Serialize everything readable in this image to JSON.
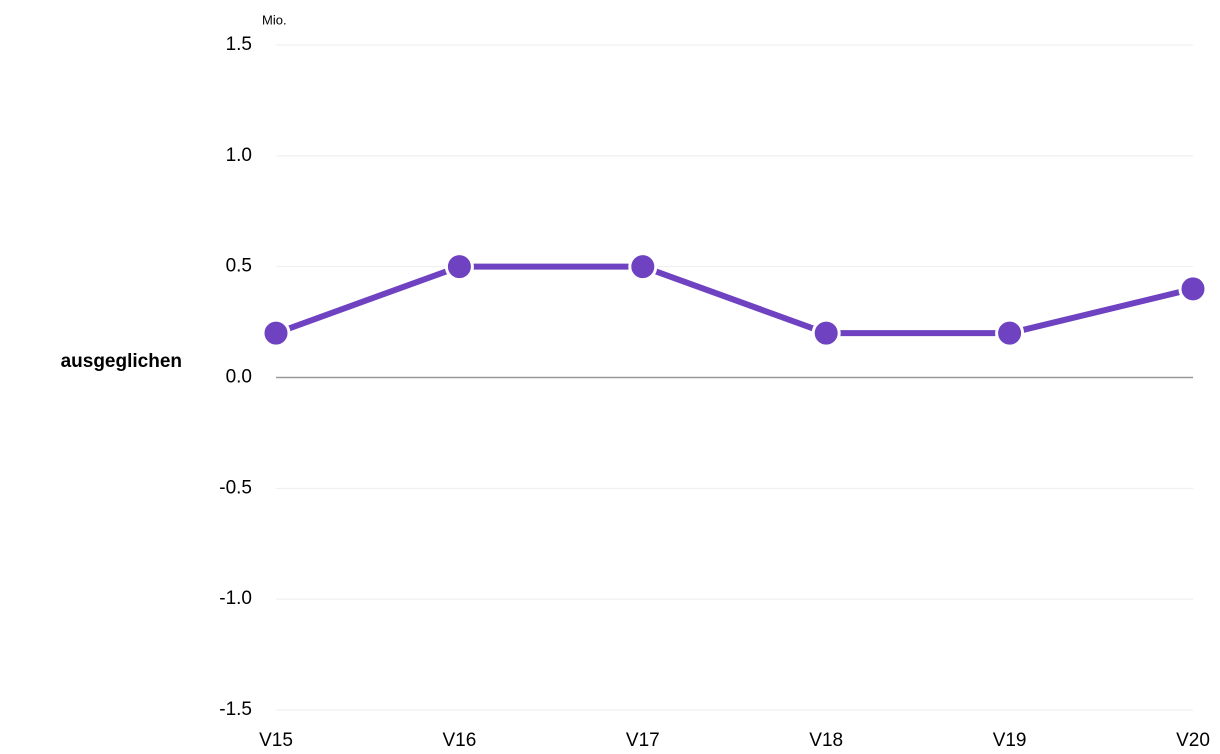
{
  "chart_data": {
    "type": "line",
    "y_unit": "Mio.",
    "annotation": "ausgeglichen",
    "categories": [
      "V15",
      "V16",
      "V17",
      "V18",
      "V19",
      "V20"
    ],
    "series": [
      {
        "name": "ausgeglichen",
        "color": "#6f42c1",
        "values": [
          0.2,
          0.5,
          0.5,
          0.2,
          0.2,
          0.4
        ]
      }
    ],
    "ylim": [
      -1.5,
      1.5
    ],
    "yticks": [
      -1.5,
      {
        "value": -1,
        "label": "-1.0"
      },
      -0.5,
      {
        "value": 0,
        "label": "0.0"
      },
      0.5,
      {
        "value": 1,
        "label": "1.0"
      },
      1.5
    ],
    "grid": true
  }
}
